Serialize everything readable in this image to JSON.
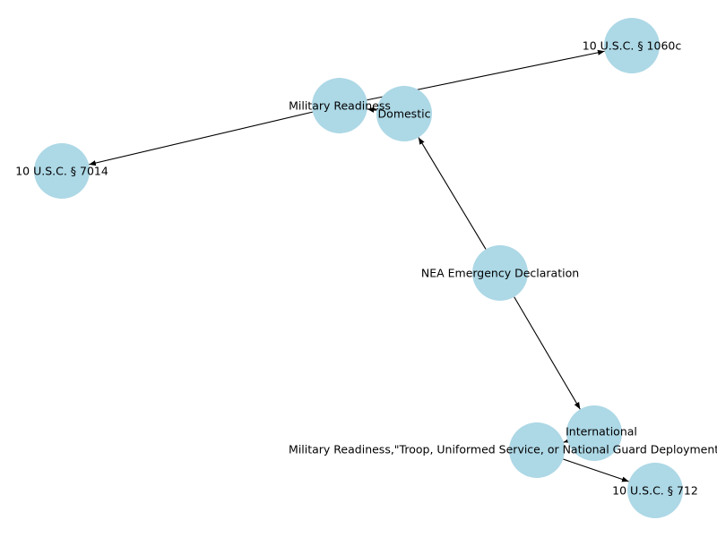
{
  "graph": {
    "node_color": "#add8e6",
    "edge_color": "#000000",
    "nodes": [
      {
        "id": "nea",
        "label": "NEA Emergency Declaration"
      },
      {
        "id": "domestic",
        "label": "Domestic"
      },
      {
        "id": "international",
        "label": "International"
      },
      {
        "id": "mr1",
        "label": "Military Readiness"
      },
      {
        "id": "mr2",
        "label": "Military Readiness,\"Troop, Uniformed Service, or National Guard Deployment\""
      },
      {
        "id": "usc7014",
        "label": "10 U.S.C. § 7014"
      },
      {
        "id": "usc1060c",
        "label": "10 U.S.C. § 1060c"
      },
      {
        "id": "usc712",
        "label": "10 U.S.C. § 712"
      }
    ],
    "edges": [
      {
        "from": "nea",
        "to": "domestic"
      },
      {
        "from": "nea",
        "to": "international"
      },
      {
        "from": "domestic",
        "to": "mr1"
      },
      {
        "from": "mr1",
        "to": "usc7014"
      },
      {
        "from": "mr1",
        "to": "usc1060c"
      },
      {
        "from": "international",
        "to": "mr2"
      },
      {
        "from": "mr2",
        "to": "usc712"
      }
    ]
  }
}
